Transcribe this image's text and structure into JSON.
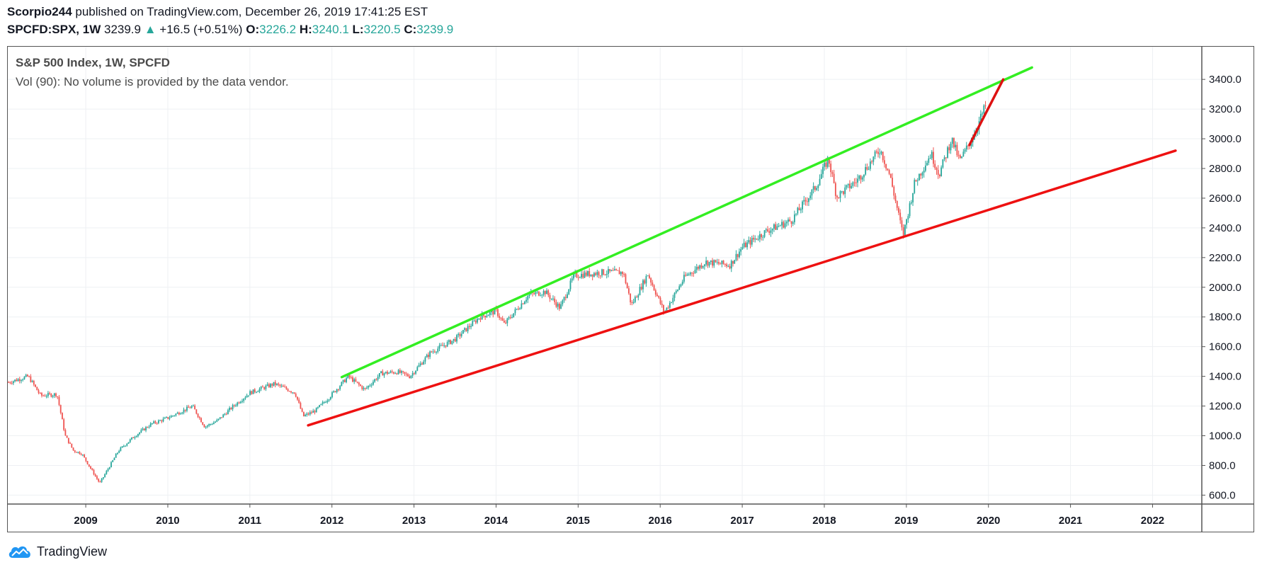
{
  "header": {
    "author": "Scorpio244",
    "published_text": "published on TradingView.com, December 26, 2019 17:41:25 EST",
    "symbol": "SPCFD:SPX, 1W",
    "last": "3239.9",
    "change": "+16.5 (+0.51%)",
    "open_label": "O:",
    "open": "3226.2",
    "high_label": "H:",
    "high": "3240.1",
    "low_label": "L:",
    "low": "3220.5",
    "close_label": "C:",
    "close": "3239.9"
  },
  "legend": {
    "title": "S&P 500 Index, 1W, SPCFD",
    "volume": "Vol (90): No volume is provided by the data vendor."
  },
  "footer": {
    "brand": "TradingView",
    "icon": "tradingview-cloud-icon"
  },
  "colors": {
    "up": "#26a69a",
    "down": "#ef5350",
    "trend_upper": "#33ee22",
    "trend_lower": "#ee1111",
    "trend_short": "#dd1111",
    "grid": "#eef0f3"
  },
  "chart_data": {
    "type": "candlestick",
    "title": "S&P 500 Index, 1W, SPCFD",
    "x_ticks": [
      "2009",
      "2010",
      "2011",
      "2012",
      "2013",
      "2014",
      "2015",
      "2016",
      "2017",
      "2018",
      "2019",
      "2020",
      "2021",
      "2022"
    ],
    "y_ticks": [
      "600.0",
      "800.0",
      "1000.0",
      "1200.0",
      "1400.0",
      "1600.0",
      "1800.0",
      "2000.0",
      "2200.0",
      "2400.0",
      "2600.0",
      "2800.0",
      "3000.0",
      "3200.0",
      "3400.0"
    ],
    "xlim": [
      2008.05,
      2022.6
    ],
    "ylim": [
      540,
      3620
    ],
    "grid": true,
    "price_path": [
      [
        2008.06,
        1360
      ],
      [
        2008.3,
        1400
      ],
      [
        2008.45,
        1270
      ],
      [
        2008.65,
        1280
      ],
      [
        2008.75,
        1000
      ],
      [
        2008.85,
        900
      ],
      [
        2008.95,
        880
      ],
      [
        2009.17,
        680
      ],
      [
        2009.4,
        900
      ],
      [
        2009.6,
        1000
      ],
      [
        2009.8,
        1080
      ],
      [
        2010.0,
        1120
      ],
      [
        2010.3,
        1200
      ],
      [
        2010.45,
        1060
      ],
      [
        2010.6,
        1100
      ],
      [
        2010.8,
        1200
      ],
      [
        2011.0,
        1290
      ],
      [
        2011.3,
        1350
      ],
      [
        2011.55,
        1290
      ],
      [
        2011.65,
        1130
      ],
      [
        2011.8,
        1170
      ],
      [
        2011.95,
        1250
      ],
      [
        2012.2,
        1400
      ],
      [
        2012.4,
        1310
      ],
      [
        2012.6,
        1420
      ],
      [
        2012.8,
        1430
      ],
      [
        2012.95,
        1400
      ],
      [
        2013.2,
        1560
      ],
      [
        2013.5,
        1650
      ],
      [
        2013.8,
        1800
      ],
      [
        2014.0,
        1840
      ],
      [
        2014.1,
        1750
      ],
      [
        2014.4,
        1950
      ],
      [
        2014.6,
        1970
      ],
      [
        2014.78,
        1860
      ],
      [
        2014.95,
        2080
      ],
      [
        2015.3,
        2100
      ],
      [
        2015.55,
        2100
      ],
      [
        2015.65,
        1880
      ],
      [
        2015.85,
        2090
      ],
      [
        2016.05,
        1830
      ],
      [
        2016.3,
        2070
      ],
      [
        2016.55,
        2170
      ],
      [
        2016.85,
        2150
      ],
      [
        2017.0,
        2270
      ],
      [
        2017.3,
        2380
      ],
      [
        2017.6,
        2450
      ],
      [
        2017.9,
        2680
      ],
      [
        2018.05,
        2870
      ],
      [
        2018.15,
        2610
      ],
      [
        2018.4,
        2720
      ],
      [
        2018.68,
        2930
      ],
      [
        2018.8,
        2750
      ],
      [
        2018.96,
        2350
      ],
      [
        2019.1,
        2700
      ],
      [
        2019.3,
        2900
      ],
      [
        2019.4,
        2760
      ],
      [
        2019.55,
        3000
      ],
      [
        2019.65,
        2850
      ],
      [
        2019.8,
        3000
      ],
      [
        2019.98,
        3240
      ]
    ],
    "trend_lines": [
      {
        "name": "upper-trendline",
        "from": [
          2012.12,
          1395
        ],
        "to": [
          2020.53,
          3480
        ]
      },
      {
        "name": "lower-trendline",
        "from": [
          2011.71,
          1070
        ],
        "to": [
          2022.28,
          2920
        ]
      },
      {
        "name": "short-trendline",
        "from": [
          2019.77,
          2960
        ],
        "to": [
          2020.18,
          3400
        ]
      }
    ]
  }
}
